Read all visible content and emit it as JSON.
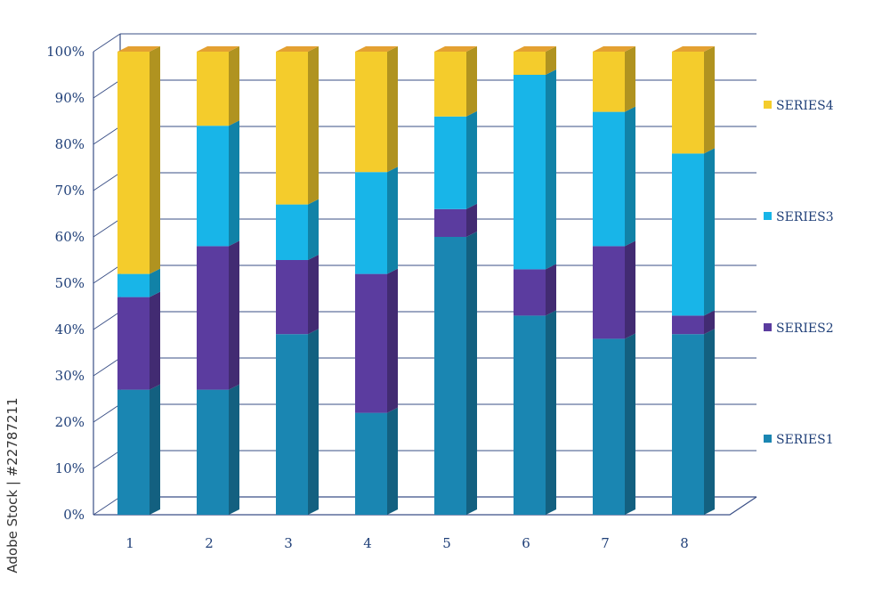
{
  "chart_data": {
    "type": "bar",
    "stacked": true,
    "percent": true,
    "three_d": true,
    "categories": [
      "1",
      "2",
      "3",
      "4",
      "5",
      "6",
      "7",
      "8"
    ],
    "series": [
      {
        "name": "SERIES1",
        "color": "#1a86b2",
        "values": [
          27,
          27,
          39,
          22,
          60,
          43,
          38,
          39
        ]
      },
      {
        "name": "SERIES2",
        "color": "#5b3c9f",
        "values": [
          20,
          31,
          16,
          30,
          6,
          10,
          20,
          4
        ]
      },
      {
        "name": "SERIES3",
        "color": "#18b5e8",
        "values": [
          5,
          26,
          12,
          22,
          20,
          42,
          29,
          35
        ]
      },
      {
        "name": "SERIES4",
        "color": "#f4cc2c",
        "values": [
          48,
          16,
          33,
          26,
          14,
          5,
          13,
          22
        ]
      }
    ],
    "y_ticks": [
      "0%",
      "10%",
      "20%",
      "30%",
      "40%",
      "50%",
      "60%",
      "70%",
      "80%",
      "90%",
      "100%"
    ],
    "ylim": [
      0,
      100
    ],
    "grid": true,
    "legend": "right"
  },
  "watermark": "Adobe Stock | #22787211"
}
